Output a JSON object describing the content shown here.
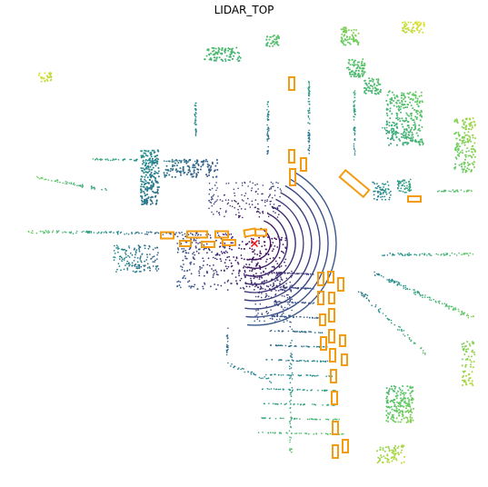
{
  "figure": {
    "title": "LIDAR_TOP"
  },
  "render": {
    "box_color": "#f39c12",
    "ego_marker_color": "#ff0000",
    "colormap": [
      "#440154",
      "#3b528b",
      "#21918c",
      "#5ec962",
      "#fde725"
    ],
    "ego_marker": "x-mark-icon"
  }
}
